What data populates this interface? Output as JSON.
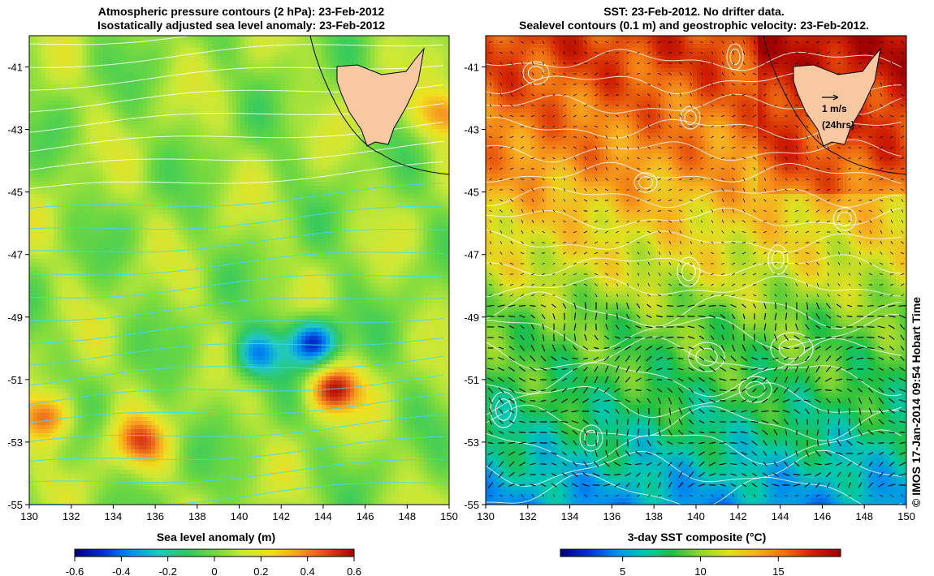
{
  "left_panel": {
    "title_line1": "Atmospheric pressure contours (2 hPa): 23-Feb-2012",
    "title_line2": "Isostatically adjusted sea level anomaly: 23-Feb-2012"
  },
  "right_panel": {
    "title_line1": "SST: 23-Feb-2012. No drifter data.",
    "title_line2": "Sealevel contours (0.1 m) and geostrophic velocity: 23-Feb-2012.",
    "velocity_scale_label": "1 m/s",
    "velocity_scale_sublabel": "(24hrs)"
  },
  "credit": "© IMOS 17-Jan-2014 09:54 Hobart Time",
  "colors": {
    "land": "#f8c8a0",
    "sla_scale": [
      "#00007a",
      "#0030d0",
      "#0090f0",
      "#20c8c0",
      "#30c860",
      "#70d840",
      "#c8e838",
      "#f0e020",
      "#f8a020",
      "#e04818",
      "#a80000"
    ],
    "sst_scale": [
      "#000080",
      "#0030d0",
      "#0090f0",
      "#00c8b0",
      "#20c040",
      "#90d830",
      "#e0e020",
      "#f8b020",
      "#f07010",
      "#d02000",
      "#a00000"
    ],
    "pressure_contour": "#40d8ff",
    "sealevel_contour": "#ffffff"
  },
  "chart_data": [
    {
      "type": "heatmap",
      "title": "Atmospheric pressure contours (2 hPa): 23-Feb-2012 / Isostatically adjusted sea level anomaly: 23-Feb-2012",
      "xlabel": "",
      "ylabel": "",
      "x_ticks": [
        "130",
        "132",
        "134",
        "136",
        "138",
        "140",
        "142",
        "144",
        "146",
        "148",
        "150"
      ],
      "y_ticks": [
        "-41",
        "-43",
        "-45",
        "-47",
        "-49",
        "-51",
        "-53",
        "-55"
      ],
      "xlim": [
        130,
        150
      ],
      "ylim": [
        -55,
        -40
      ],
      "colorbar": {
        "label": "Sea level anomaly (m)",
        "ticks": [
          "-0.6",
          "-0.4",
          "-0.2",
          "0",
          "0.2",
          "0.4",
          "0.6"
        ],
        "range": [
          -0.6,
          0.6
        ]
      },
      "features": [
        {
          "name": "negative anomaly",
          "lon": 143.5,
          "lat": -49.8,
          "value": -0.55
        },
        {
          "name": "negative anomaly",
          "lon": 140.8,
          "lat": -50.2,
          "value": -0.4
        },
        {
          "name": "positive anomaly",
          "lon": 144.5,
          "lat": -51.3,
          "value": 0.5
        },
        {
          "name": "positive anomaly",
          "lon": 130.8,
          "lat": -52.2,
          "value": 0.4
        },
        {
          "name": "positive anomaly",
          "lon": 135.2,
          "lat": -53.0,
          "value": 0.35
        },
        {
          "name": "positive anomaly",
          "lon": 149.8,
          "lat": -42.5,
          "value": 0.35
        }
      ]
    },
    {
      "type": "heatmap",
      "title": "SST: 23-Feb-2012. No drifter data. / Sealevel contours (0.1 m) and geostrophic velocity: 23-Feb-2012.",
      "xlabel": "",
      "ylabel": "",
      "x_ticks": [
        "130",
        "132",
        "134",
        "136",
        "138",
        "140",
        "142",
        "144",
        "146",
        "148",
        "150"
      ],
      "y_ticks": [
        "-41",
        "-43",
        "-45",
        "-47",
        "-49",
        "-51",
        "-53",
        "-55"
      ],
      "xlim": [
        130,
        150
      ],
      "ylim": [
        -55,
        -40
      ],
      "colorbar": {
        "label": "3-day SST composite (°C)",
        "ticks": [
          "5",
          "10",
          "15"
        ],
        "range": [
          1,
          19
        ]
      },
      "sst_by_latitude": [
        {
          "lat": -40.5,
          "sst": 16.5
        },
        {
          "lat": -42,
          "sst": 15.5
        },
        {
          "lat": -44,
          "sst": 14.5
        },
        {
          "lat": -46,
          "sst": 12.5
        },
        {
          "lat": -47.5,
          "sst": 11.5
        },
        {
          "lat": -49,
          "sst": 9.5
        },
        {
          "lat": -51,
          "sst": 8.5
        },
        {
          "lat": -53,
          "sst": 7
        },
        {
          "lat": -55,
          "sst": 5
        }
      ]
    }
  ]
}
